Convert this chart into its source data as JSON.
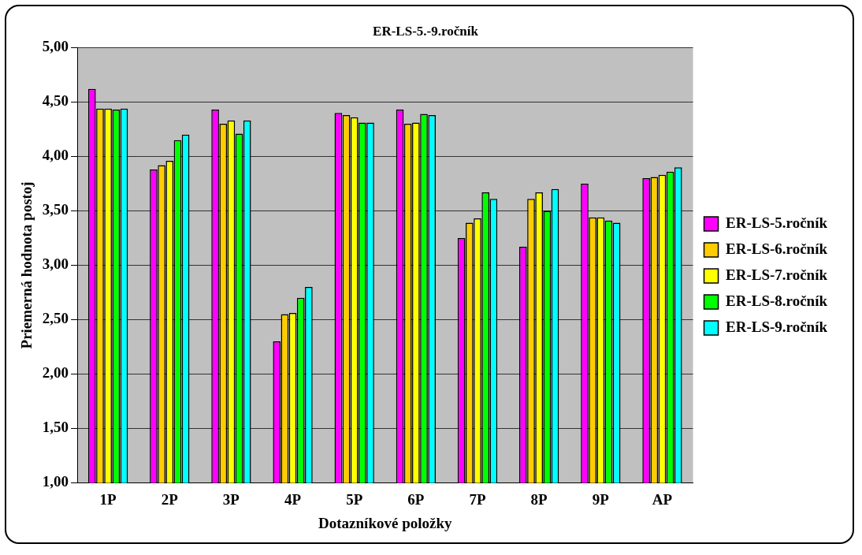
{
  "chart_data": {
    "type": "bar",
    "title": "ER-LS-5.-9.ročník",
    "xlabel": "Dotazníkové položky",
    "ylabel": "Priemerná hodnota postoj",
    "categories": [
      "1P",
      "2P",
      "3P",
      "4P",
      "5P",
      "6P",
      "7P",
      "8P",
      "9P",
      "AP"
    ],
    "series": [
      {
        "name": "ER-LS-5.ročník",
        "color": "#ff00ff",
        "values": [
          4.62,
          3.88,
          4.43,
          2.3,
          4.4,
          4.43,
          3.25,
          3.17,
          3.75,
          3.8
        ]
      },
      {
        "name": "ER-LS-6.ročník",
        "color": "#ffcc00",
        "values": [
          4.44,
          3.92,
          4.3,
          2.55,
          4.38,
          4.3,
          3.39,
          3.61,
          3.44,
          3.81
        ]
      },
      {
        "name": "ER-LS-7.ročník",
        "color": "#ffff00",
        "values": [
          4.44,
          3.96,
          4.33,
          2.56,
          4.36,
          4.31,
          3.43,
          3.67,
          3.44,
          3.83
        ]
      },
      {
        "name": "ER-LS-8.ročník",
        "color": "#00ff00",
        "values": [
          4.43,
          4.15,
          4.21,
          2.7,
          4.31,
          4.39,
          3.67,
          3.5,
          3.41,
          3.86
        ]
      },
      {
        "name": "ER-LS-9.ročník",
        "color": "#00ffff",
        "values": [
          4.44,
          4.2,
          4.33,
          2.8,
          4.31,
          4.38,
          3.61,
          3.7,
          3.39,
          3.9
        ]
      }
    ],
    "ylim": [
      1,
      5
    ],
    "yticks": [
      {
        "value": 1,
        "label": "1,00"
      },
      {
        "value": 1.5,
        "label": "1,50"
      },
      {
        "value": 2,
        "label": "2,00"
      },
      {
        "value": 2.5,
        "label": "2,50"
      },
      {
        "value": 3,
        "label": "3,00"
      },
      {
        "value": 3.5,
        "label": "3,50"
      },
      {
        "value": 4,
        "label": "4,00"
      },
      {
        "value": 4.5,
        "label": "4,50"
      },
      {
        "value": 5,
        "label": "5,00"
      }
    ],
    "grid": "y",
    "legend": "right"
  }
}
